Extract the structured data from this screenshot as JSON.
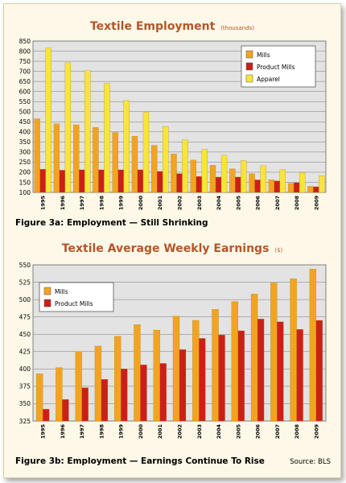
{
  "chart_data": [
    {
      "type": "bar",
      "title": "Textile Employment",
      "units": "(thousands)",
      "caption": "Figure 3a: Employment — Still Shrinking",
      "categories": [
        "1995",
        "1996",
        "1997",
        "1998",
        "1999",
        "2000",
        "2001",
        "2002",
        "2003",
        "2004",
        "2005",
        "2006",
        "2007",
        "2008",
        "2009"
      ],
      "series": [
        {
          "name": "Mills",
          "color": "#f2a421",
          "values": [
            465,
            440,
            435,
            422,
            397,
            378,
            333,
            290,
            260,
            235,
            217,
            193,
            163,
            145,
            130
          ]
        },
        {
          "name": "Product Mills",
          "color": "#cc1f1a",
          "values": [
            215,
            210,
            212,
            212,
            212,
            212,
            204,
            193,
            179,
            176,
            176,
            162,
            157,
            148,
            128
          ]
        },
        {
          "name": "Apparel",
          "color": "#f7e53a",
          "values": [
            815,
            743,
            703,
            640,
            555,
            497,
            427,
            361,
            312,
            285,
            258,
            232,
            213,
            198,
            183
          ]
        }
      ],
      "ylim": [
        100,
        850
      ],
      "yticks": [
        100,
        150,
        200,
        250,
        300,
        350,
        400,
        450,
        500,
        550,
        600,
        650,
        700,
        750,
        800,
        850
      ],
      "grid": true,
      "legend": "top-right"
    },
    {
      "type": "bar",
      "title": "Textile Average Weekly Earnings",
      "units": "($)",
      "caption": "Figure 3b: Employment — Earnings Continue To Rise",
      "source": "Source: BLS",
      "categories": [
        "1995",
        "1996",
        "1997",
        "1998",
        "1999",
        "2000",
        "2001",
        "2002",
        "2003",
        "2004",
        "2005",
        "2006",
        "2007",
        "2008",
        "2009"
      ],
      "series": [
        {
          "name": "Mills",
          "color": "#f2a421",
          "values": [
            393,
            402,
            425,
            433,
            447,
            464,
            456,
            476,
            470,
            486,
            497,
            508,
            524,
            530,
            544
          ]
        },
        {
          "name": "Product Mills",
          "color": "#cc1f1a",
          "values": [
            342,
            356,
            373,
            385,
            400,
            406,
            408,
            428,
            444,
            449,
            455,
            472,
            468,
            457,
            470
          ]
        }
      ],
      "ylim": [
        325,
        550
      ],
      "yticks": [
        325,
        350,
        375,
        400,
        425,
        450,
        475,
        500,
        525,
        550
      ],
      "grid": true,
      "legend": "top-left"
    }
  ]
}
